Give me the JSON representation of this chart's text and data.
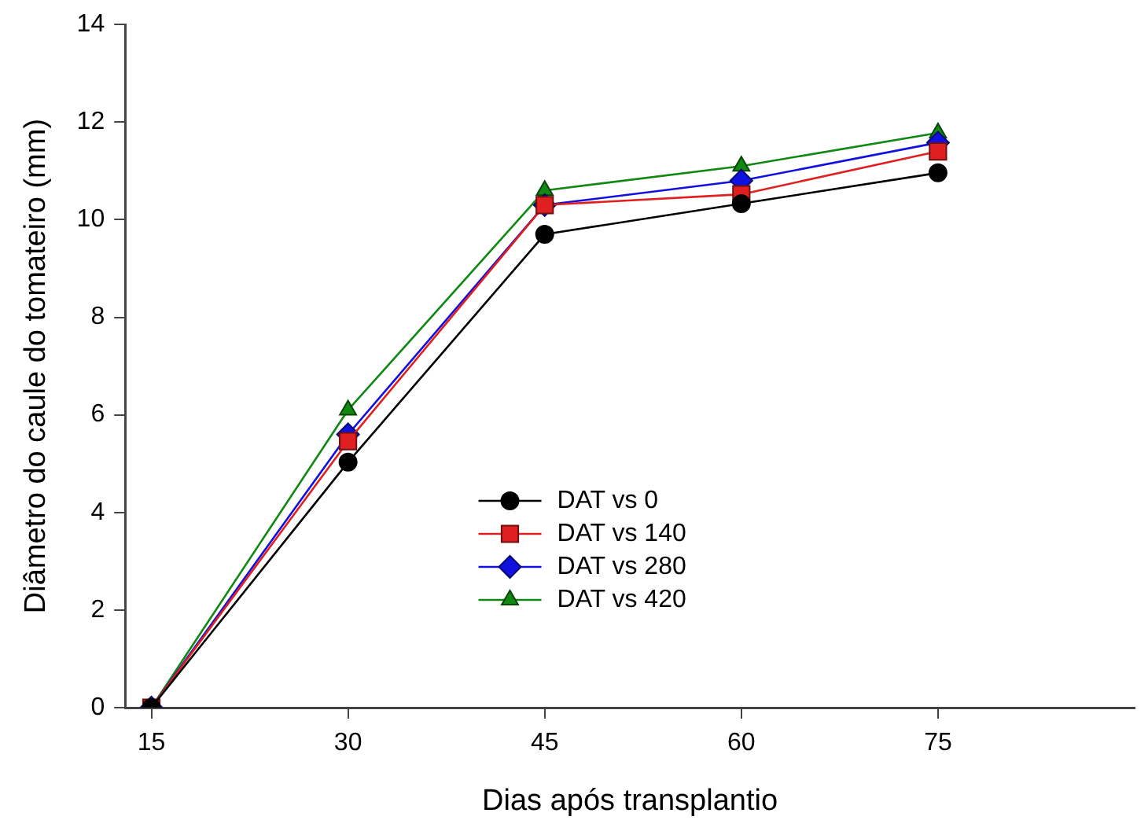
{
  "chart_data": {
    "type": "line",
    "xlabel": "Dias após transplantio",
    "ylabel": "Diâmetro do caule do tomateiro (mm)",
    "x": [
      15,
      30,
      45,
      60,
      75
    ],
    "series": [
      {
        "name": "DAT vs 0",
        "color": "#000000",
        "marker": "circle",
        "values": [
          0,
          5.03,
          9.7,
          10.33,
          10.96
        ]
      },
      {
        "name": "DAT vs 140",
        "color": "#e02020",
        "marker": "square",
        "values": [
          0,
          5.46,
          10.3,
          10.52,
          11.4
        ]
      },
      {
        "name": "DAT vs 280",
        "color": "#1010e0",
        "marker": "diamond",
        "values": [
          0,
          5.6,
          10.3,
          10.8,
          11.58
        ]
      },
      {
        "name": "DAT vs 420",
        "color": "#118811",
        "marker": "triangle",
        "values": [
          0,
          6.1,
          10.6,
          11.1,
          11.78
        ]
      }
    ],
    "xlim": [
      13,
      90
    ],
    "xticks": [
      15,
      30,
      45,
      60,
      75
    ],
    "ylim": [
      0,
      14
    ],
    "yticks": [
      0,
      2,
      4,
      6,
      8,
      10,
      12,
      14
    ],
    "grid": false,
    "legend": "bottom",
    "line_style": "solid"
  }
}
